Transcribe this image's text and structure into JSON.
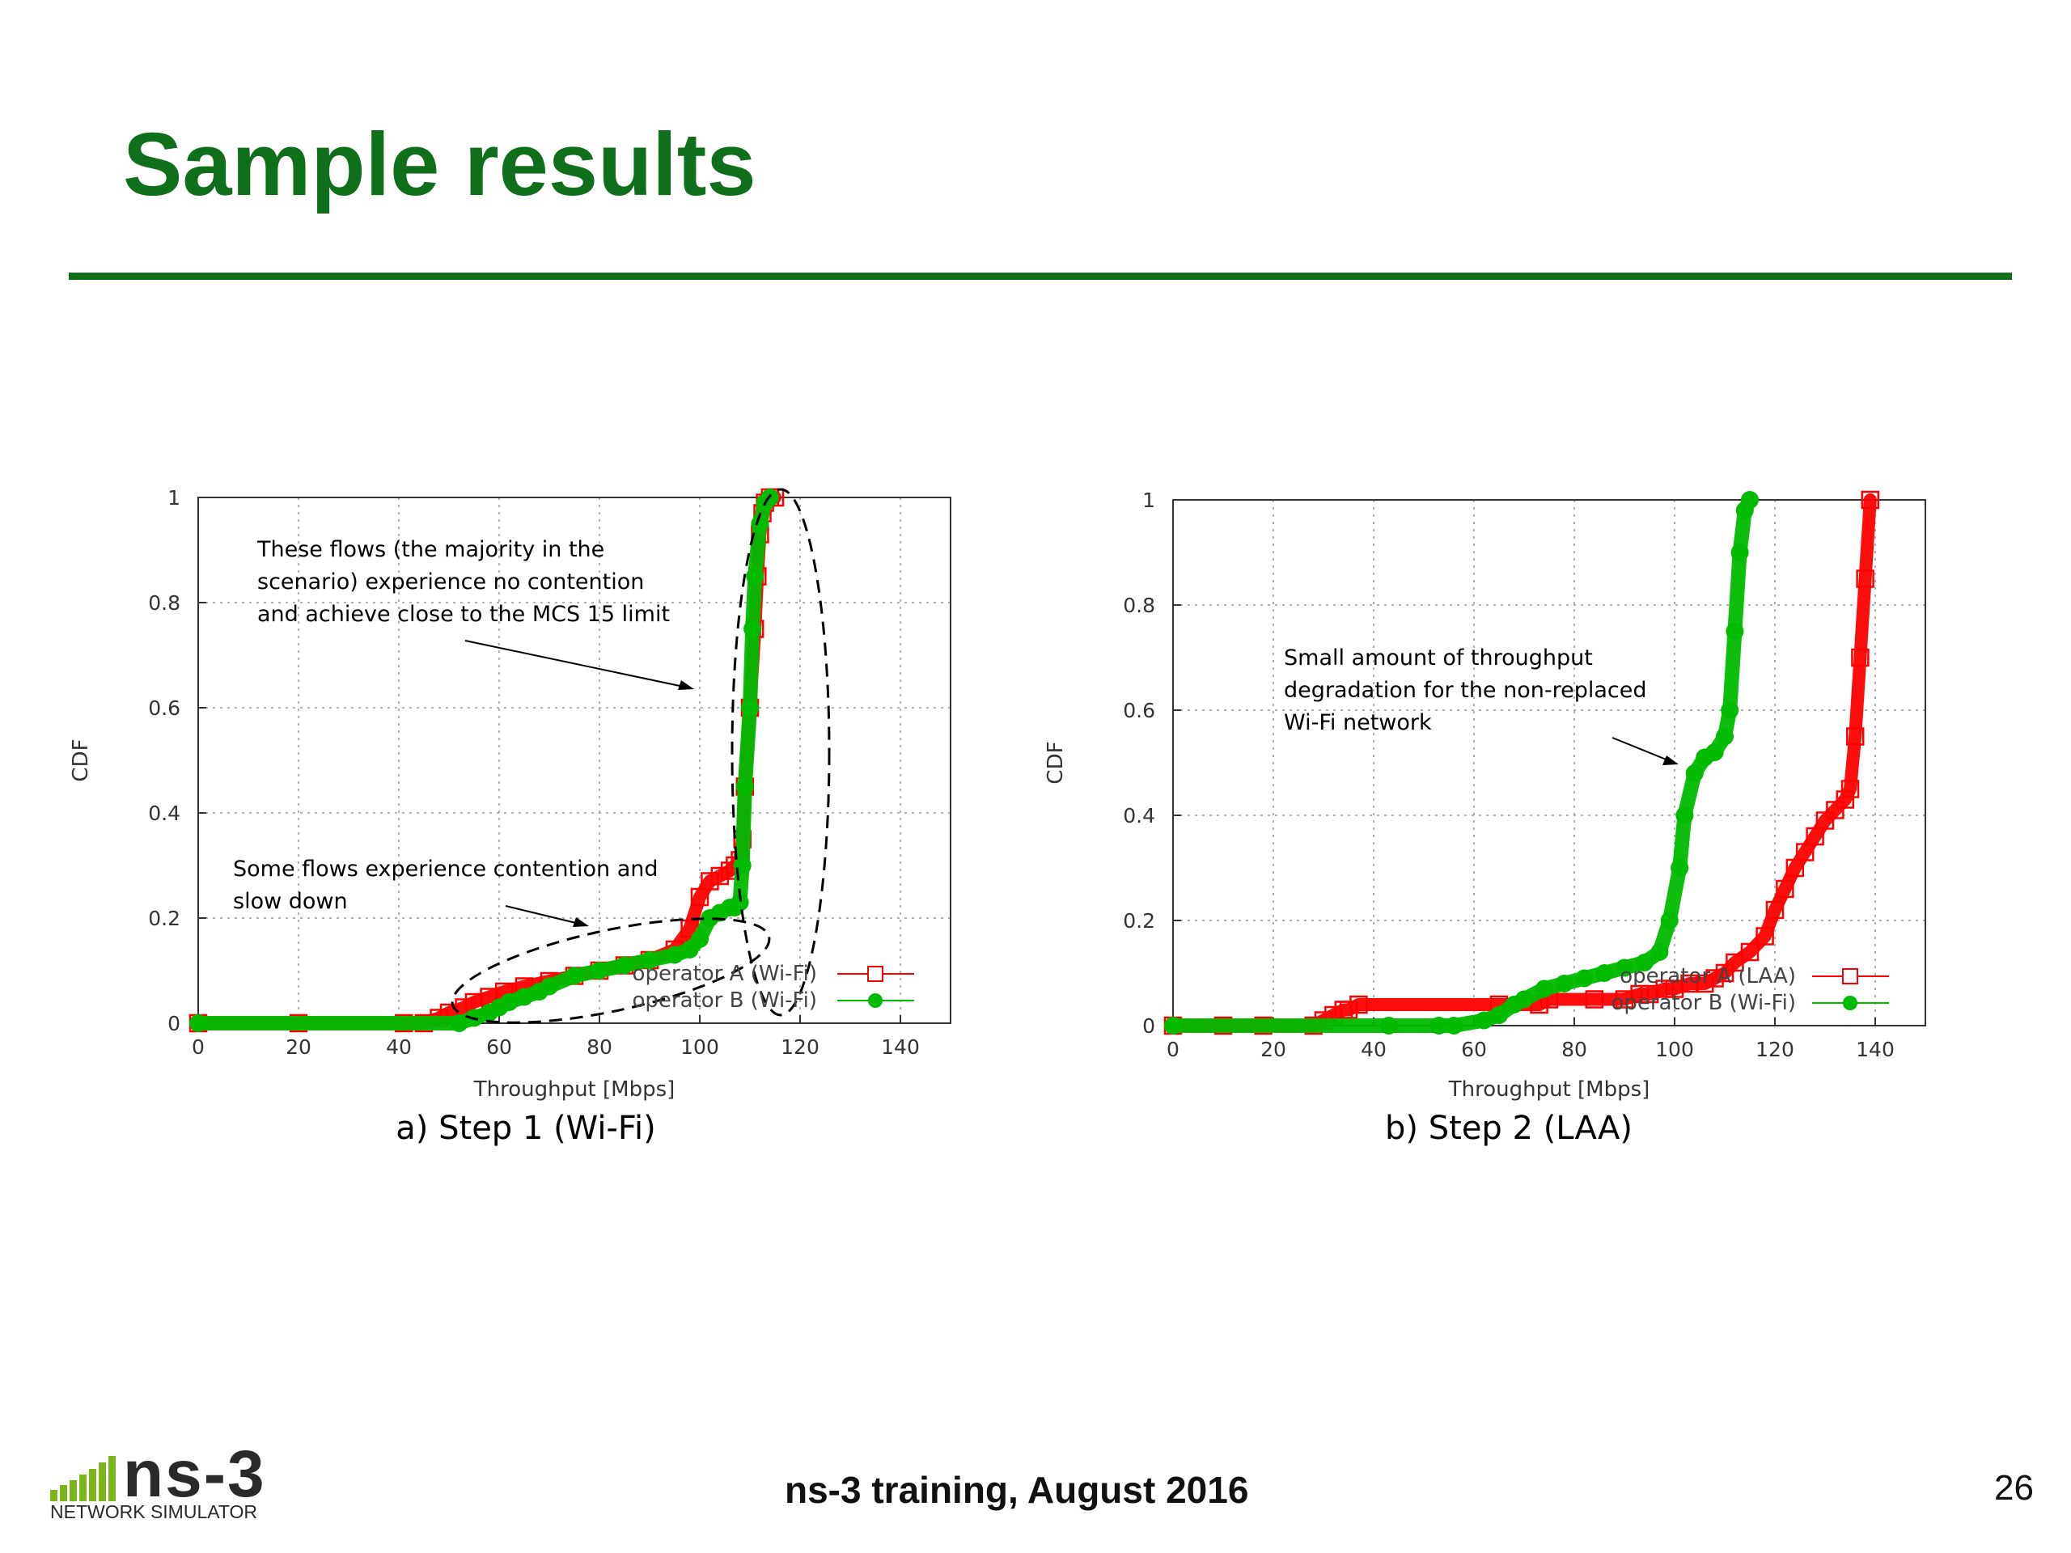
{
  "slide": {
    "title": "Sample results",
    "footer": "ns-3 training, August 2016",
    "page_number": "26",
    "logo_text": "ns-3",
    "logo_subtitle": "NETWORK SIMULATOR",
    "accent_color": "#0f6f1b"
  },
  "chart_data": [
    {
      "type": "scatter",
      "caption": "a) Step 1 (Wi-Fi)",
      "xlabel": "Throughput [Mbps]",
      "ylabel": "CDF",
      "xlim": [
        0,
        150
      ],
      "ylim": [
        0,
        1
      ],
      "x_ticks": [
        "0",
        "20",
        "40",
        "60",
        "80",
        "100",
        "120",
        "140"
      ],
      "y_ticks": [
        "0",
        "0.2",
        "0.4",
        "0.6",
        "0.8",
        "1"
      ],
      "grid": true,
      "legend_position": "bottom-right",
      "series": [
        {
          "name": "operator A (Wi-Fi)",
          "color": "#ff0000",
          "marker": "open-square",
          "x": [
            0,
            20,
            41,
            45,
            48,
            50,
            53,
            55,
            58,
            61,
            65,
            70,
            75,
            80,
            85,
            90,
            95,
            98,
            100,
            102,
            104,
            106,
            107,
            108,
            108.5,
            109,
            110,
            111,
            111.5,
            112,
            112.5,
            113,
            114,
            115
          ],
          "y": [
            0,
            0,
            0,
            0,
            0.01,
            0.02,
            0.03,
            0.04,
            0.05,
            0.06,
            0.07,
            0.08,
            0.09,
            0.1,
            0.11,
            0.12,
            0.14,
            0.18,
            0.24,
            0.27,
            0.28,
            0.29,
            0.3,
            0.31,
            0.35,
            0.45,
            0.6,
            0.75,
            0.85,
            0.93,
            0.97,
            0.99,
            1,
            1
          ]
        },
        {
          "name": "operator B (Wi-Fi)",
          "color": "#00bb00",
          "marker": "filled-circle",
          "x": [
            0,
            52,
            55,
            58,
            60,
            62,
            65,
            68,
            70,
            75,
            80,
            85,
            90,
            95,
            98,
            100,
            102,
            104,
            106,
            107,
            108,
            108.5,
            109,
            110,
            110.5,
            111,
            112,
            113,
            114
          ],
          "y": [
            0,
            0,
            0.01,
            0.02,
            0.03,
            0.04,
            0.05,
            0.06,
            0.07,
            0.09,
            0.1,
            0.11,
            0.12,
            0.13,
            0.14,
            0.16,
            0.2,
            0.21,
            0.22,
            0.22,
            0.23,
            0.3,
            0.45,
            0.6,
            0.75,
            0.85,
            0.95,
            0.99,
            1
          ]
        }
      ],
      "annotations": [
        {
          "lines": [
            "These flows (the majority in the",
            "scenario) experience no contention",
            "and achieve close to the MCS 15 limit"
          ]
        },
        {
          "lines": [
            "Some flows experience contention and",
            "slow down"
          ]
        }
      ]
    },
    {
      "type": "scatter",
      "caption": "b) Step 2 (LAA)",
      "xlabel": "Throughput [Mbps]",
      "ylabel": "CDF",
      "xlim": [
        0,
        150
      ],
      "ylim": [
        0,
        1
      ],
      "x_ticks": [
        "0",
        "20",
        "40",
        "60",
        "80",
        "100",
        "120",
        "140"
      ],
      "y_ticks": [
        "0",
        "0.2",
        "0.4",
        "0.6",
        "0.8",
        "1"
      ],
      "grid": true,
      "legend_position": "bottom-right",
      "series": [
        {
          "name": "operator A (LAA)",
          "color": "#ff0000",
          "marker": "open-square",
          "x": [
            0,
            10,
            18,
            28,
            30,
            32,
            34,
            35,
            37,
            65,
            73,
            75,
            84,
            90,
            93,
            95,
            98,
            100,
            103,
            106,
            108,
            110,
            112,
            115,
            118,
            120,
            122,
            124,
            126,
            128,
            130,
            132,
            134,
            135,
            136,
            137,
            138,
            139
          ],
          "y": [
            0,
            0,
            0,
            0,
            0.01,
            0.02,
            0.03,
            0.03,
            0.04,
            0.04,
            0.04,
            0.05,
            0.05,
            0.05,
            0.06,
            0.06,
            0.07,
            0.07,
            0.08,
            0.08,
            0.09,
            0.1,
            0.12,
            0.14,
            0.17,
            0.22,
            0.26,
            0.3,
            0.33,
            0.36,
            0.39,
            0.41,
            0.43,
            0.45,
            0.55,
            0.7,
            0.85,
            1
          ]
        },
        {
          "name": "operator B (Wi-Fi)",
          "color": "#00bb00",
          "marker": "filled-circle",
          "x": [
            0,
            43,
            53,
            56,
            62,
            65,
            68,
            70,
            74,
            78,
            82,
            86,
            90,
            94,
            97,
            99,
            101,
            102,
            104,
            106,
            108,
            110,
            111,
            112,
            113,
            114,
            115
          ],
          "y": [
            0,
            0,
            0,
            0,
            0.01,
            0.02,
            0.04,
            0.05,
            0.07,
            0.08,
            0.09,
            0.1,
            0.11,
            0.12,
            0.14,
            0.2,
            0.3,
            0.4,
            0.48,
            0.51,
            0.52,
            0.55,
            0.6,
            0.75,
            0.9,
            0.98,
            1
          ]
        }
      ],
      "annotations": [
        {
          "lines": [
            "Small amount of throughput",
            "degradation for the non-replaced",
            "Wi-Fi network"
          ]
        }
      ]
    }
  ]
}
